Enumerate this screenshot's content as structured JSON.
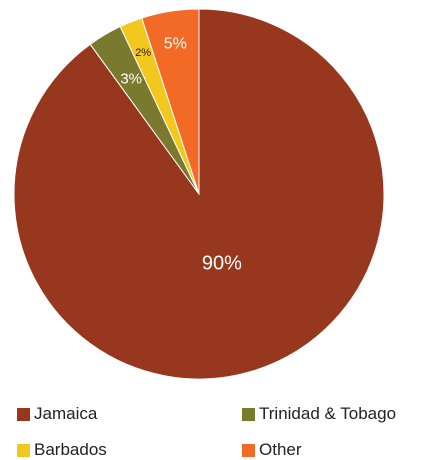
{
  "chart_data": {
    "type": "pie",
    "categories": [
      "Jamaica",
      "Trinidad & Tobago",
      "Barbados",
      "Other"
    ],
    "values": [
      90,
      3,
      2,
      5
    ],
    "data_labels": [
      "90%",
      "3%",
      "2%",
      "5%"
    ],
    "colors": [
      "#96371e",
      "#7a7a2e",
      "#f2c71e",
      "#f26a26"
    ],
    "title": "",
    "legend_position": "bottom"
  }
}
